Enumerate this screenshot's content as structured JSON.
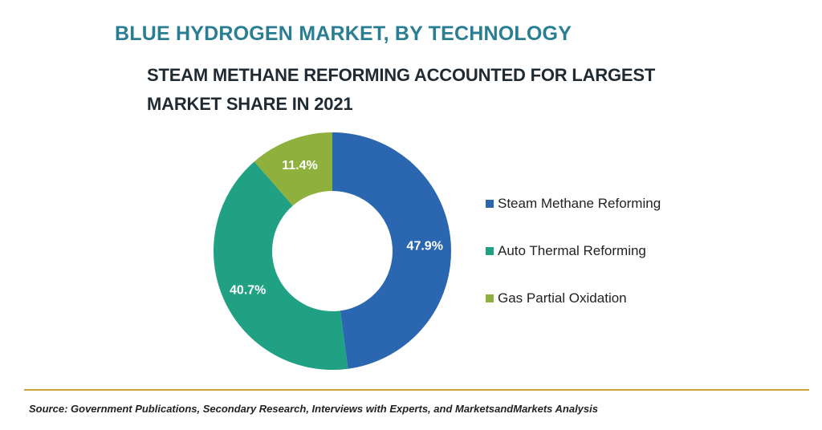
{
  "header": {
    "title": "BLUE HYDROGEN MARKET, BY TECHNOLOGY",
    "subtitle": "STEAM METHANE REFORMING ACCOUNTED FOR LARGEST MARKET SHARE IN 2021"
  },
  "chart_data": {
    "type": "pie",
    "donut": true,
    "categories": [
      "Steam Methane Reforming",
      "Auto Thermal Reforming",
      "Gas Partial Oxidation"
    ],
    "values": [
      47.9,
      40.7,
      11.4
    ],
    "labels": [
      "47.9%",
      "40.7%",
      "11.4%"
    ],
    "colors": [
      "#2a67b0",
      "#21a184",
      "#8fb03c"
    ],
    "legend_placement": "right"
  },
  "footer": {
    "source": "Source: Government Publications, Secondary Research, Interviews with Experts, and MarketsandMarkets Analysis"
  }
}
